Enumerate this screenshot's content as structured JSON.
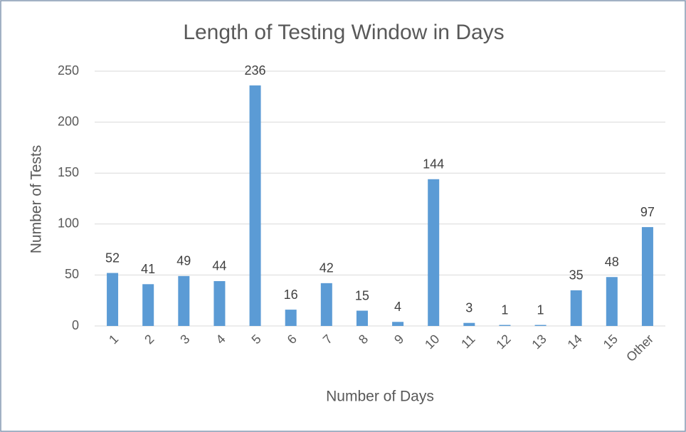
{
  "chart_data": {
    "type": "bar",
    "title": "Length of Testing Window in Days",
    "x_label": "Number of Days",
    "y_label": "Number of Tests",
    "categories": [
      "1",
      "2",
      "3",
      "4",
      "5",
      "6",
      "7",
      "8",
      "9",
      "10",
      "11",
      "12",
      "13",
      "14",
      "15",
      "Other"
    ],
    "values": [
      52,
      41,
      49,
      44,
      236,
      16,
      42,
      15,
      4,
      144,
      3,
      1,
      1,
      35,
      48,
      97
    ],
    "color": "#5b9bd5",
    "ylim": [
      0,
      250
    ],
    "yticks": [
      0,
      50,
      100,
      150,
      200,
      250
    ],
    "grid": true
  }
}
